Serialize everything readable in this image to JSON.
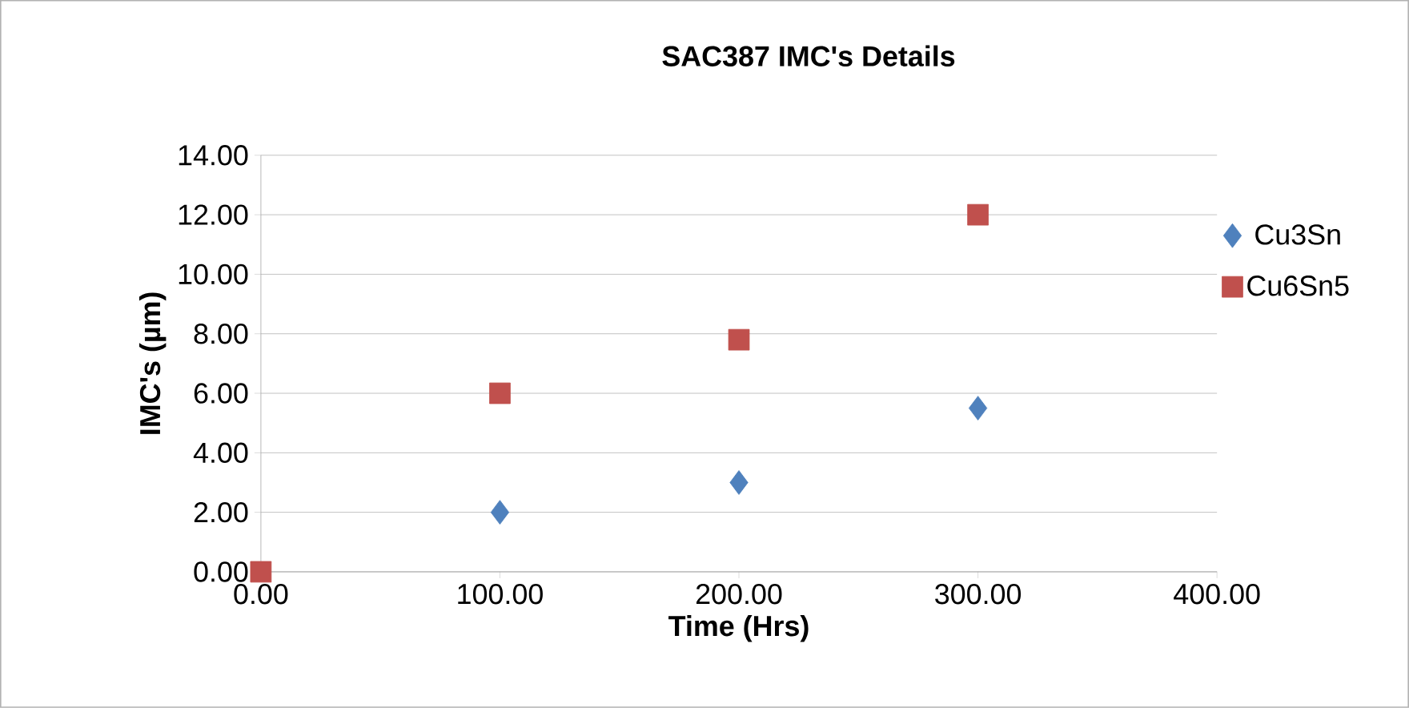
{
  "chart_data": {
    "type": "scatter",
    "title": "SAC387 IMC's Details",
    "xlabel": "Time (Hrs)",
    "ylabel": "IMC's (µm)",
    "xlim": [
      0,
      400
    ],
    "ylim": [
      0,
      14
    ],
    "xticks": [
      {
        "value": 0,
        "label": "0.00"
      },
      {
        "value": 100,
        "label": "100.00"
      },
      {
        "value": 200,
        "label": "200.00"
      },
      {
        "value": 300,
        "label": "300.00"
      },
      {
        "value": 400,
        "label": "400.00"
      }
    ],
    "yticks": [
      {
        "value": 0,
        "label": "0.00"
      },
      {
        "value": 2,
        "label": "2.00"
      },
      {
        "value": 4,
        "label": "4.00"
      },
      {
        "value": 6,
        "label": "6.00"
      },
      {
        "value": 8,
        "label": "8.00"
      },
      {
        "value": 10,
        "label": "10.00"
      },
      {
        "value": 12,
        "label": "12.00"
      },
      {
        "value": 14,
        "label": "14.00"
      }
    ],
    "grid": "y",
    "legend": "right",
    "series": [
      {
        "name": "Cu3Sn",
        "color": "#4f81bd",
        "marker": "diamond",
        "x": [
          100,
          200,
          300
        ],
        "values": [
          2,
          3,
          5.5
        ]
      },
      {
        "name": "Cu6Sn5",
        "color": "#c0504d",
        "marker": "square",
        "x": [
          0,
          100,
          200,
          300
        ],
        "values": [
          0,
          6,
          7.8,
          12
        ]
      }
    ]
  }
}
